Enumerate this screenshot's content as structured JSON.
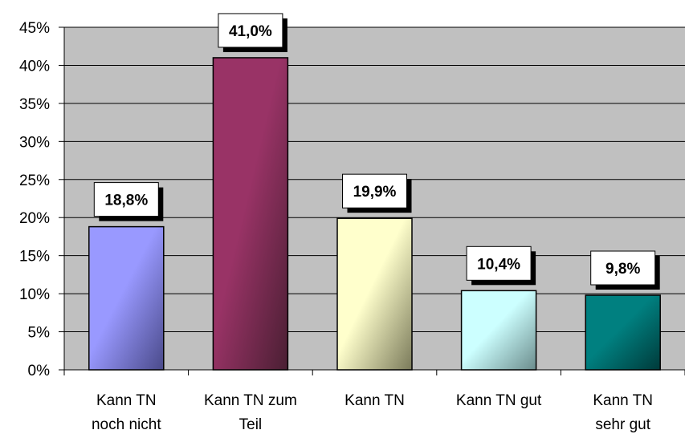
{
  "chart_data": {
    "type": "bar",
    "categories": [
      [
        "Kann TN",
        "noch nicht"
      ],
      [
        "Kann TN zum",
        "Teil"
      ],
      [
        "Kann TN"
      ],
      [
        "Kann TN gut"
      ],
      [
        "Kann TN",
        "sehr gut"
      ]
    ],
    "values": [
      18.8,
      41.0,
      19.9,
      10.4,
      9.8
    ],
    "data_labels": [
      "18,8%",
      "41,0%",
      "19,9%",
      "10,4%",
      "9,8%"
    ],
    "ylim": [
      0,
      45
    ],
    "y_ticks": [
      0,
      5,
      10,
      15,
      20,
      25,
      30,
      35,
      40,
      45
    ],
    "y_tick_labels": [
      "0%",
      "5%",
      "10%",
      "15%",
      "20%",
      "25%",
      "30%",
      "35%",
      "40%",
      "45%"
    ],
    "grid": true,
    "plot_background": "#c0c0c0",
    "bar_colors": [
      [
        "#9999ff",
        "#4a4a8a"
      ],
      [
        "#993366",
        "#4a1f33"
      ],
      [
        "#ffffcc",
        "#7a7a5a"
      ],
      [
        "#ccffff",
        "#6b8c8c"
      ],
      [
        "#008080",
        "#003a3a"
      ]
    ]
  }
}
